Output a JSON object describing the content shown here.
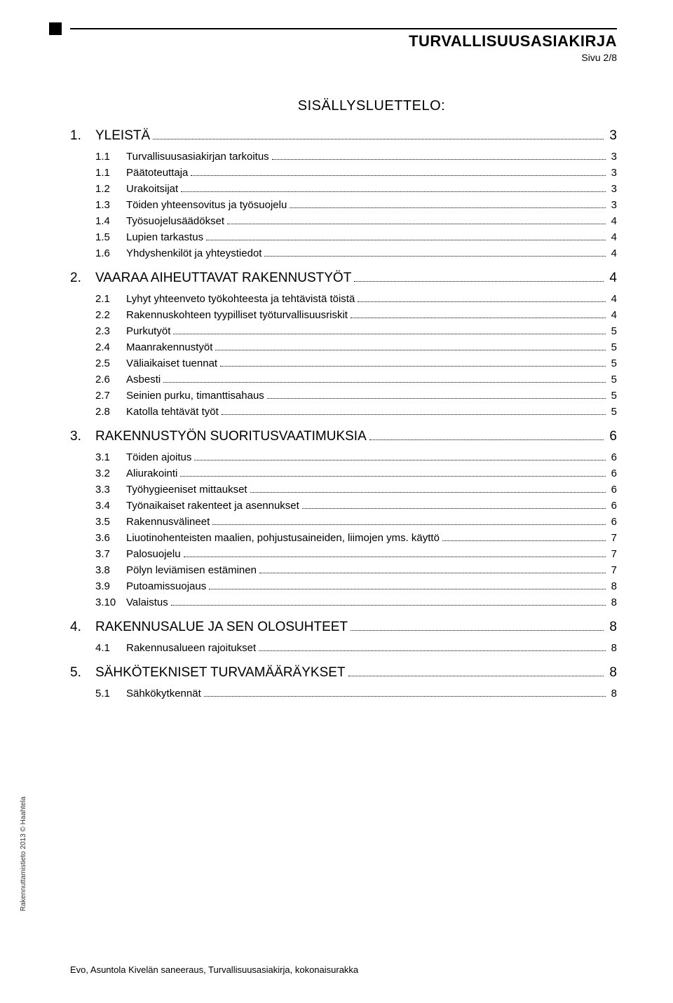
{
  "header": {
    "title": "TURVALLISUUSASIAKIRJA",
    "page": "Sivu 2/8"
  },
  "toc_title": "SISÄLLYSLUETTELO:",
  "toc": [
    {
      "level": 0,
      "num": "1.",
      "label": "YLEISTÄ",
      "page": "3"
    },
    {
      "level": 1,
      "num": "1.1",
      "label": "Turvallisuusasiakirjan tarkoitus",
      "page": "3"
    },
    {
      "level": 1,
      "num": "1.1",
      "label": "Päätoteuttaja",
      "page": "3"
    },
    {
      "level": 1,
      "num": "1.2",
      "label": "Urakoitsijat",
      "page": "3"
    },
    {
      "level": 1,
      "num": "1.3",
      "label": "Töiden yhteensovitus ja työsuojelu",
      "page": "3"
    },
    {
      "level": 1,
      "num": "1.4",
      "label": "Työsuojelusäädökset",
      "page": "4"
    },
    {
      "level": 1,
      "num": "1.5",
      "label": "Lupien tarkastus",
      "page": "4"
    },
    {
      "level": 1,
      "num": "1.6",
      "label": "Yhdyshenkilöt ja yhteystiedot",
      "page": "4"
    },
    {
      "level": 0,
      "num": "2.",
      "label": "VAARAA AIHEUTTAVAT RAKENNUSTYÖT",
      "page": "4"
    },
    {
      "level": 1,
      "num": "2.1",
      "label": "Lyhyt yhteenveto työkohteesta ja tehtävistä töistä",
      "page": "4"
    },
    {
      "level": 1,
      "num": "2.2",
      "label": "Rakennuskohteen tyypilliset työturvallisuusriskit",
      "page": "4"
    },
    {
      "level": 1,
      "num": "2.3",
      "label": "Purkutyöt",
      "page": "5"
    },
    {
      "level": 1,
      "num": "2.4",
      "label": "Maanrakennustyöt",
      "page": "5"
    },
    {
      "level": 1,
      "num": "2.5",
      "label": "Väliaikaiset tuennat",
      "page": "5"
    },
    {
      "level": 1,
      "num": "2.6",
      "label": "Asbesti",
      "page": "5"
    },
    {
      "level": 1,
      "num": "2.7",
      "label": "Seinien purku, timanttisahaus",
      "page": "5"
    },
    {
      "level": 1,
      "num": "2.8",
      "label": "Katolla tehtävät työt",
      "page": "5"
    },
    {
      "level": 0,
      "num": "3.",
      "label": "RAKENNUSTYÖN SUORITUSVAATIMUKSIA",
      "page": "6"
    },
    {
      "level": 1,
      "num": "3.1",
      "label": "Töiden ajoitus",
      "page": "6"
    },
    {
      "level": 1,
      "num": "3.2",
      "label": "Aliurakointi",
      "page": "6"
    },
    {
      "level": 1,
      "num": "3.3",
      "label": "Työhygieeniset mittaukset",
      "page": "6"
    },
    {
      "level": 1,
      "num": "3.4",
      "label": "Työnaikaiset rakenteet ja asennukset",
      "page": "6"
    },
    {
      "level": 1,
      "num": "3.5",
      "label": "Rakennusvälineet",
      "page": "6"
    },
    {
      "level": 1,
      "num": "3.6",
      "label": "Liuotinohenteisten maalien, pohjustusaineiden, liimojen yms. käyttö",
      "page": "7"
    },
    {
      "level": 1,
      "num": "3.7",
      "label": "Palosuojelu",
      "page": "7"
    },
    {
      "level": 1,
      "num": "3.8",
      "label": "Pölyn leviämisen estäminen",
      "page": "7"
    },
    {
      "level": 1,
      "num": "3.9",
      "label": "Putoamissuojaus",
      "page": "8"
    },
    {
      "level": 1,
      "num": "3.10",
      "label": "Valaistus",
      "page": "8"
    },
    {
      "level": 0,
      "num": "4.",
      "label": "RAKENNUSALUE JA SEN OLOSUHTEET",
      "page": "8"
    },
    {
      "level": 1,
      "num": "4.1",
      "label": "Rakennusalueen rajoitukset",
      "page": "8"
    },
    {
      "level": 0,
      "num": "5.",
      "label": "SÄHKÖTEKNISET TURVAMÄÄRÄYKSET",
      "page": "8"
    },
    {
      "level": 1,
      "num": "5.1",
      "label": "Sähkökytkennät",
      "page": "8"
    }
  ],
  "sidetext": "Rakennuttamistieto 2013 © Haahtela",
  "footer": "Evo, Asuntola Kivelän saneeraus, Turvallisuusasiakirja, kokonaisurakka"
}
